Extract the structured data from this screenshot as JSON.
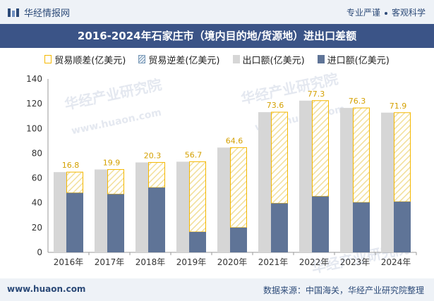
{
  "header": {
    "brand": "华经情报网",
    "tagline_left": "专业严谨",
    "tagline_right": "客观科学"
  },
  "title": "2016-2024年石家庄市（境内目的地/货源地）进出口差额",
  "legend": {
    "surplus": "贸易顺差(亿美元)",
    "deficit": "贸易逆差(亿美元)",
    "export": "出口额(亿美元)",
    "import": "进口额(亿美元)"
  },
  "watermarks": {
    "cn": "华经产业研究院",
    "url": "www.huaon.com"
  },
  "footer": {
    "url": "www.huaon.com",
    "source": "数据来源：中国海关，华经产业研究院整理"
  },
  "colors": {
    "export": "#d6d6d6",
    "import": "#5f7497",
    "surplus_border": "#f5b800",
    "deficit_hatch": "#7a9ab8",
    "title_bg": "#3b5487"
  },
  "chart_data": {
    "type": "bar",
    "categories": [
      "2016年",
      "2017年",
      "2018年",
      "2019年",
      "2020年",
      "2021年",
      "2022年",
      "2023年",
      "2024年"
    ],
    "series": [
      {
        "name": "出口额(亿美元)",
        "values": [
          64.8,
          66.9,
          72.6,
          73.2,
          84.6,
          113.2,
          122.5,
          116.6,
          112.8
        ]
      },
      {
        "name": "进口额(亿美元)",
        "values": [
          48.0,
          47.0,
          52.3,
          16.5,
          20.0,
          39.6,
          45.2,
          40.3,
          40.9
        ]
      },
      {
        "name": "贸易顺差(亿美元)",
        "values": [
          16.8,
          19.9,
          20.3,
          56.7,
          64.6,
          73.6,
          77.3,
          76.3,
          71.9
        ]
      }
    ],
    "ylim": [
      0,
      140
    ],
    "yticks": [
      0,
      20,
      40,
      60,
      80,
      100,
      120,
      140
    ],
    "grid": false,
    "legend_position": "top"
  }
}
